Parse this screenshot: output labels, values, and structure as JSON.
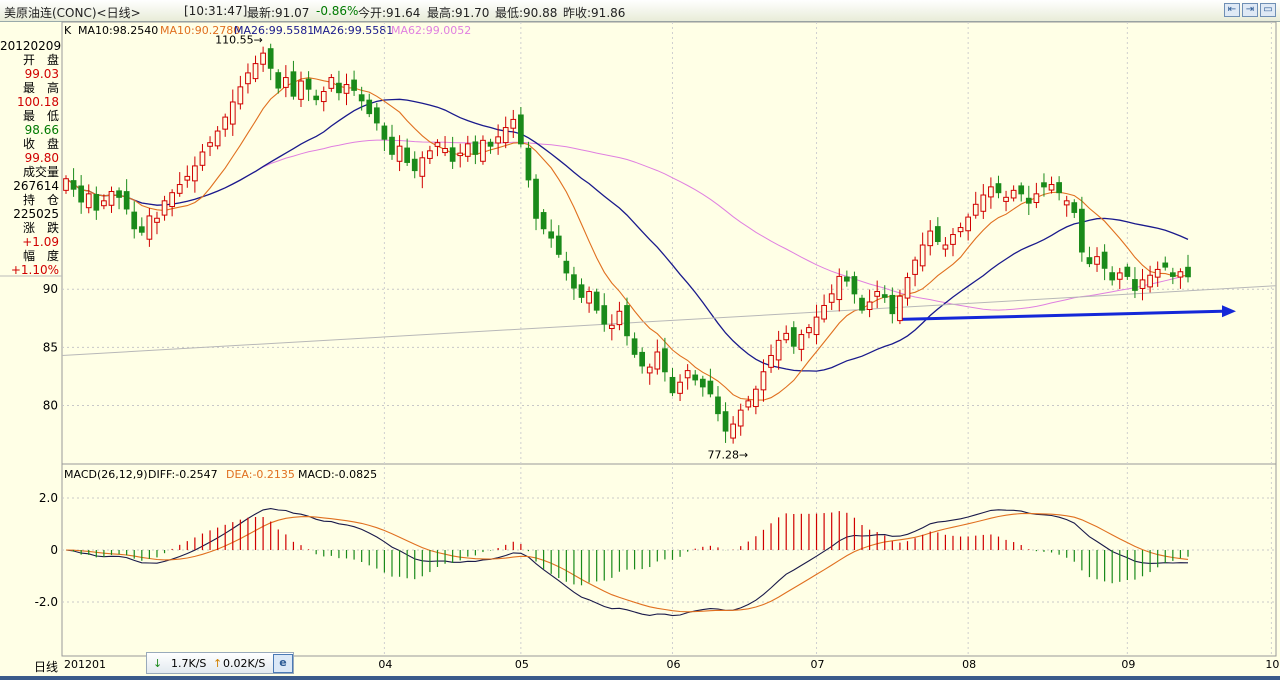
{
  "title": {
    "name": "美原油连(CONC)<日线>",
    "time": "[10:31:47]",
    "latest": "最新:91.07",
    "change": "-0.86%",
    "open": "今开:91.64",
    "high": "最高:91.70",
    "low": "最低:90.88",
    "prev": "昨收:91.86"
  },
  "info": {
    "date": "20120209",
    "open_label": "开　盘",
    "open": "99.03",
    "high_label": "最　高",
    "high": "100.18",
    "low_label": "最　低",
    "low": "98.66",
    "close_label": "收　盘",
    "close": "99.80",
    "vol_label": "成交量",
    "vol": "267614",
    "oi_label": "持　仓",
    "oi": "225025",
    "chg_label": "涨　跌",
    "chg": "+1.09",
    "pct_label": "幅　度",
    "pct": "+1.10%"
  },
  "legend_main": {
    "k": "K",
    "ma10a": "MA10:98.2540",
    "ma10b": "MA10:90.2780",
    "ma26a": "MA26:99.5581",
    "ma26b": "MA26:99.5581",
    "ma62": "MA62:99.0052"
  },
  "legend_macd": {
    "name": "MACD(26,12,9)",
    "diff": "DIFF:-0.2547",
    "dea": "DEA:-0.2135",
    "macd": "MACD:-0.0825"
  },
  "axis_label": "日线",
  "status": {
    "down": "1.7K/S",
    "up": "0.02K/S"
  },
  "colors": {
    "up": "#d00000",
    "down": "#1a8a1a",
    "ma10": "#e07020",
    "ma26": "#1a1a8c",
    "ma62": "#e080e0",
    "trend": "#1428d8",
    "background": "#ffffe6"
  },
  "chart_data": {
    "type": "candlestick",
    "price_axis": {
      "ticks": [
        80,
        85,
        90
      ],
      "ylim": [
        76,
        111
      ]
    },
    "macd_axis": {
      "ticks": [
        "2.0",
        "0",
        "-2.0"
      ],
      "ylim": [
        -4.0,
        3.0
      ]
    },
    "x_labels": [
      "201201",
      "04",
      "05",
      "06",
      "07",
      "08",
      "09",
      "10"
    ],
    "annotations": {
      "high": "110.55",
      "low": "77.28"
    },
    "close": [
      99.5,
      98.6,
      97.5,
      98.2,
      96.8,
      97.6,
      98.4,
      97.9,
      96.9,
      95.2,
      94.9,
      96.3,
      96.1,
      97.6,
      98.3,
      99.0,
      99.7,
      100.6,
      101.8,
      102.6,
      103.6,
      104.8,
      106.1,
      107.4,
      108.6,
      109.4,
      110.3,
      109.0,
      107.3,
      108.2,
      106.6,
      107.9,
      107.2,
      106.3,
      107.0,
      108.2,
      106.9,
      107.6,
      107.1,
      106.2,
      105.1,
      104.3,
      102.9,
      101.6,
      102.3,
      100.9,
      100.2,
      101.3,
      101.9,
      102.6,
      102.1,
      101.0,
      101.7,
      102.5,
      101.6,
      102.8,
      102.3,
      103.1,
      103.9,
      104.6,
      102.5,
      99.4,
      96.1,
      95.2,
      94.4,
      93.0,
      91.4,
      90.1,
      89.3,
      89.8,
      88.2,
      87.0,
      86.9,
      88.1,
      86.0,
      84.4,
      83.4,
      83.3,
      84.6,
      82.9,
      81.1,
      82.0,
      83.0,
      82.2,
      81.6,
      81.0,
      79.3,
      77.8,
      78.4,
      79.6,
      80.4,
      81.4,
      82.9,
      84.3,
      85.6,
      86.2,
      85.1,
      86.1,
      86.7,
      87.6,
      88.6,
      89.6,
      91.1,
      90.7,
      89.6,
      88.2,
      88.9,
      89.8,
      89.3,
      87.9,
      89.4,
      91.0,
      92.5,
      93.8,
      95.0,
      94.1,
      93.8,
      94.7,
      95.3,
      96.2,
      97.3,
      98.1,
      98.8,
      98.3,
      97.9,
      98.5,
      98.2,
      97.4,
      98.2,
      98.8,
      99.0,
      98.3,
      97.6,
      96.6,
      93.2,
      92.2,
      92.8,
      91.8,
      90.8,
      91.4,
      91.1,
      89.9,
      90.8,
      91.2,
      91.7,
      91.9,
      91.1,
      91.5,
      91.07
    ],
    "diff_series_end": -0.2547,
    "dea_series_end": -0.2135,
    "macd_series_end": -0.0825
  }
}
